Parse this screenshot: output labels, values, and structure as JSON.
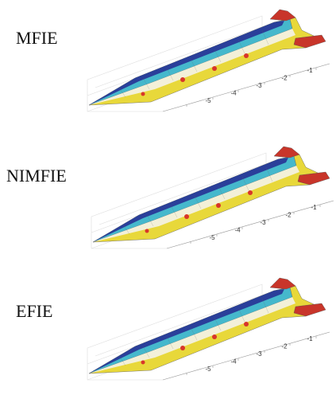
{
  "panels": [
    {
      "label": "MFIE",
      "ticks": [
        -1,
        -2,
        -3,
        -4,
        -5
      ]
    },
    {
      "label": "NIMFIE",
      "ticks": [
        -1,
        -2,
        -3,
        -4,
        -5
      ]
    },
    {
      "label": "EFIE",
      "ticks": [
        -1,
        -2,
        -3,
        -4,
        -5
      ]
    }
  ]
}
